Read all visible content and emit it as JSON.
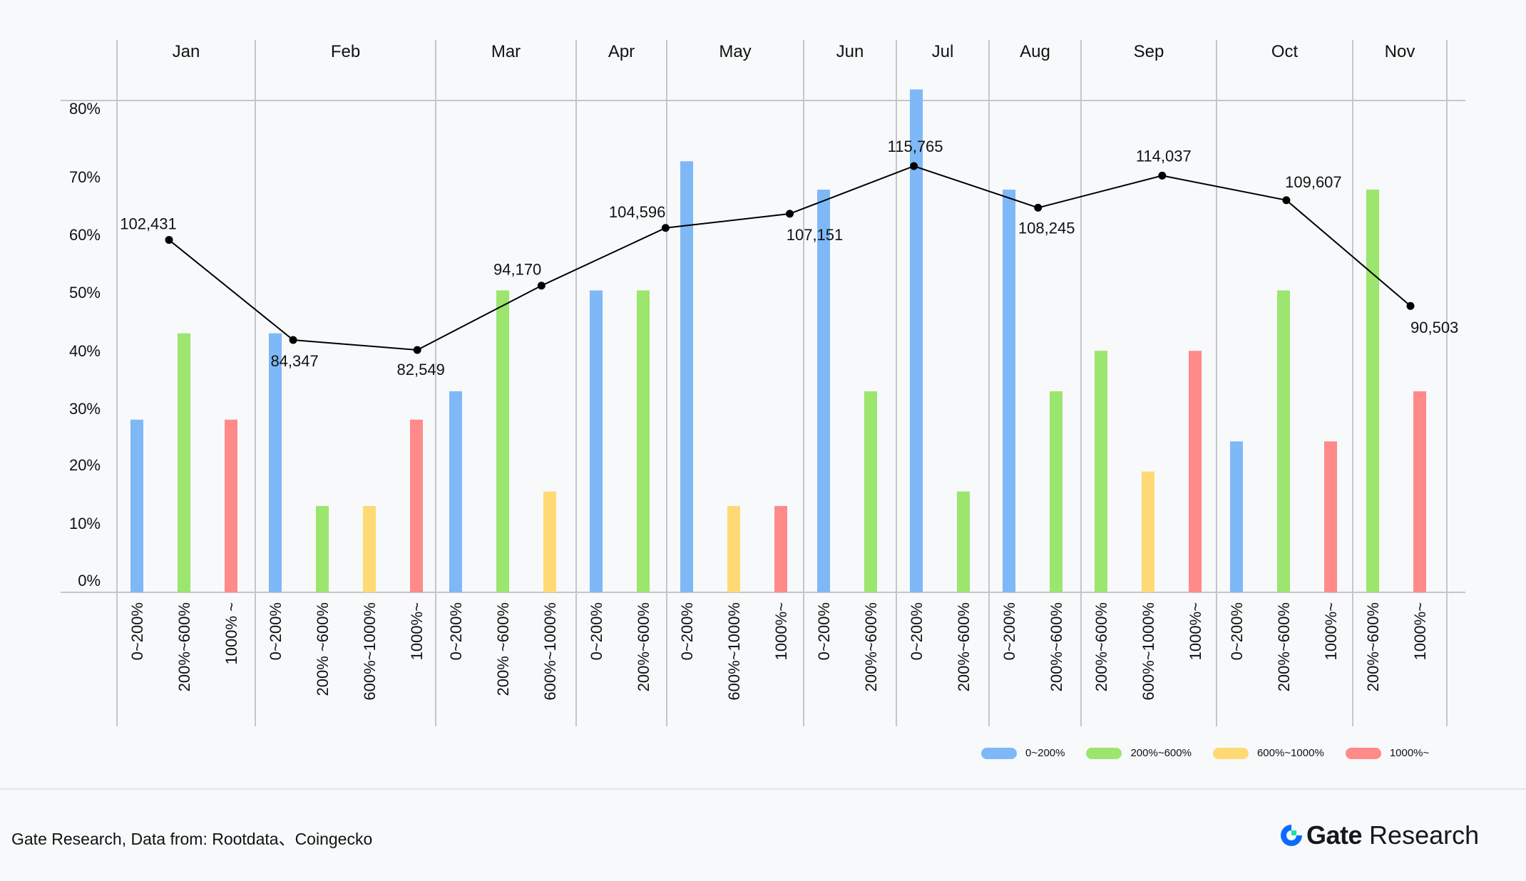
{
  "chart_data": {
    "type": "bar",
    "title": "",
    "xlabel": "",
    "ylabel": "",
    "ylim": [
      0,
      85
    ],
    "grid": false,
    "yticks": [
      "80%",
      "70%",
      "60%",
      "50%",
      "40%",
      "30%",
      "20%",
      "10%",
      "0%"
    ],
    "legend_position": "bottom-right",
    "legend": [
      {
        "label": "0~200%",
        "color": "#7EB8F7"
      },
      {
        "label": "200%~600%",
        "color": "#9CE56E"
      },
      {
        "label": "600%~1000%",
        "color": "#FFDA74"
      },
      {
        "label": "1000%~",
        "color": "#FF8A8A"
      }
    ],
    "groups": [
      {
        "month": "Jan",
        "bars": [
          {
            "label": "0~200%",
            "series": 0,
            "value": 28.6
          },
          {
            "label": "200%~600%",
            "series": 1,
            "value": 42.9
          },
          {
            "label": "1000% ~",
            "series": 3,
            "value": 28.6
          }
        ]
      },
      {
        "month": "Feb",
        "bars": [
          {
            "label": "0~200%",
            "series": 0,
            "value": 42.9
          },
          {
            "label": "200% ~600%",
            "series": 1,
            "value": 14.3
          },
          {
            "label": "600%~1000%",
            "series": 2,
            "value": 14.3
          },
          {
            "label": "1000%~",
            "series": 3,
            "value": 28.6
          }
        ]
      },
      {
        "month": "Mar",
        "bars": [
          {
            "label": "0~200%",
            "series": 0,
            "value": 33.3
          },
          {
            "label": "200% ~600%",
            "series": 1,
            "value": 50.0
          },
          {
            "label": "600%~1000%",
            "series": 2,
            "value": 16.7
          }
        ]
      },
      {
        "month": "Apr",
        "bars": [
          {
            "label": "0~200%",
            "series": 0,
            "value": 50.0
          },
          {
            "label": "200%~600%",
            "series": 1,
            "value": 50.0
          }
        ]
      },
      {
        "month": "May",
        "bars": [
          {
            "label": "0~200%",
            "series": 0,
            "value": 71.4
          },
          {
            "label": "600%~1000%",
            "series": 2,
            "value": 14.3
          },
          {
            "label": "1000%~",
            "series": 3,
            "value": 14.3
          }
        ]
      },
      {
        "month": "Jun",
        "bars": [
          {
            "label": "0~200%",
            "series": 0,
            "value": 66.7
          },
          {
            "label": "200%~600%",
            "series": 1,
            "value": 33.3
          }
        ]
      },
      {
        "month": "Jul",
        "bars": [
          {
            "label": "0~200%",
            "series": 0,
            "value": 83.3
          },
          {
            "label": "200%~600%",
            "series": 1,
            "value": 16.7
          }
        ]
      },
      {
        "month": "Aug",
        "bars": [
          {
            "label": "0~200%",
            "series": 0,
            "value": 66.7
          },
          {
            "label": "200%~600%",
            "series": 1,
            "value": 33.3
          }
        ]
      },
      {
        "month": "Sep",
        "bars": [
          {
            "label": "200%~600%",
            "series": 1,
            "value": 40.0
          },
          {
            "label": "600%~1000%",
            "series": 2,
            "value": 20.0
          },
          {
            "label": "1000%~",
            "series": 3,
            "value": 40.0
          }
        ]
      },
      {
        "month": "Oct",
        "bars": [
          {
            "label": "0~200%",
            "series": 0,
            "value": 25.0
          },
          {
            "label": "200%~600%",
            "series": 1,
            "value": 50.0
          },
          {
            "label": "1000%~",
            "series": 3,
            "value": 25.0
          }
        ]
      },
      {
        "month": "Nov",
        "bars": [
          {
            "label": "200%~600%",
            "series": 1,
            "value": 66.7
          },
          {
            "label": "1000%~",
            "series": 3,
            "value": 33.3
          }
        ]
      }
    ],
    "line_series": {
      "type": "line",
      "labels": [
        "102,431",
        "84,347",
        "82,549",
        "94,170",
        "104,596",
        "107,151",
        "115,765",
        "108,245",
        "114,037",
        "109,607",
        "90,503"
      ],
      "values": [
        102431,
        84347,
        82549,
        94170,
        104596,
        107151,
        115765,
        108245,
        114037,
        109607,
        90503
      ],
      "color": "#000000"
    }
  },
  "footer": {
    "source": "Gate Research, Data from: Rootdata、Coingecko",
    "brand_gate": "Gate",
    "brand_research": "Research",
    "logo_colors": {
      "ring": "#0A6CFF",
      "square": "#17E6A1"
    }
  }
}
